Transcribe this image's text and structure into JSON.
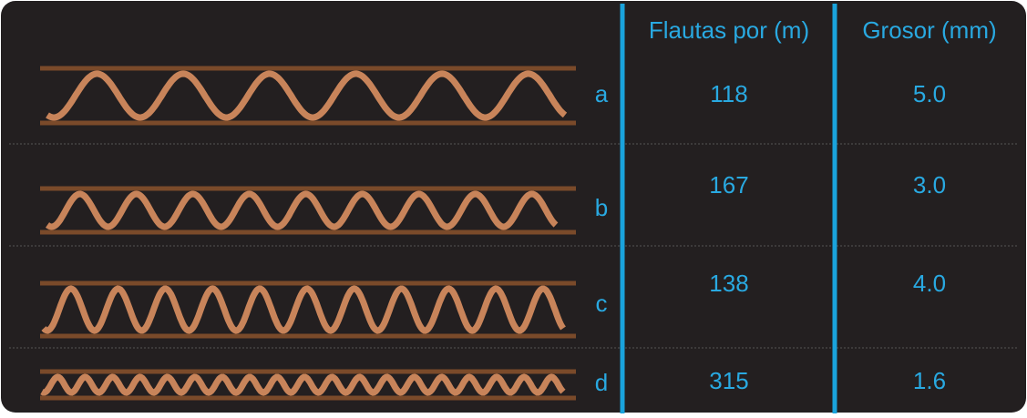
{
  "table": {
    "headers": [
      "Flautas por (m)",
      "Grosor (mm)"
    ],
    "rows": [
      [
        "a",
        "118",
        "5.0"
      ],
      [
        "b",
        "167",
        "3.0"
      ],
      [
        "c",
        "138",
        "4.0"
      ],
      [
        "d",
        "315",
        "1.6"
      ]
    ]
  }
}
